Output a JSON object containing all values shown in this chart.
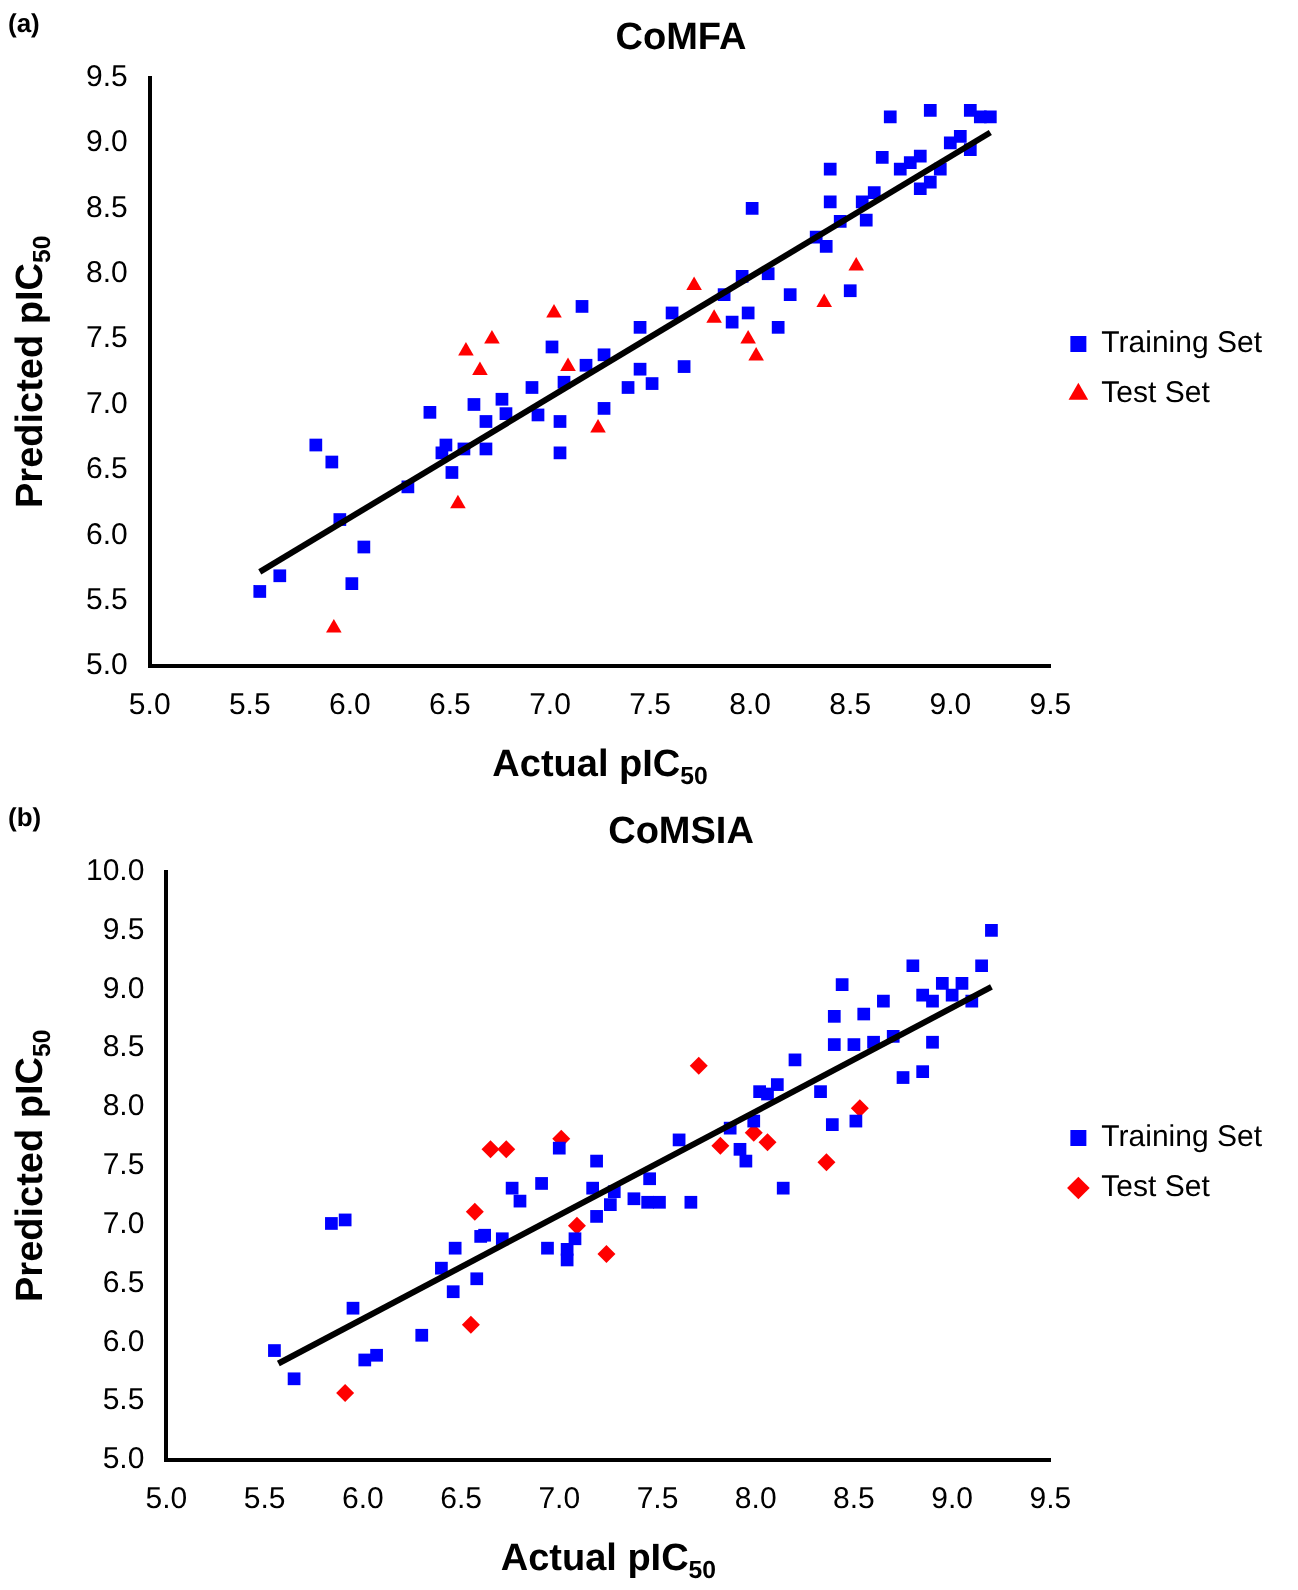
{
  "chart_data": [
    {
      "type": "scatter",
      "title": "CoMFA",
      "xlabel": "Actual pIC$_{50}$",
      "ylabel": "Predicted pIC$_{50}$",
      "annotations": [
        "(a)"
      ],
      "legend": "right",
      "grid": false,
      "xlim": [
        5,
        9.5
      ],
      "xticks": [
        {
          "value": 5,
          "label": "5.0"
        },
        {
          "value": 5.5,
          "label": "5.5"
        },
        {
          "value": 6,
          "label": "6.0"
        },
        {
          "value": 6.5,
          "label": "6.5"
        },
        {
          "value": 7,
          "label": "7.0"
        },
        {
          "value": 7.5,
          "label": "7.5"
        },
        {
          "value": 8,
          "label": "8.0"
        },
        {
          "value": 8.5,
          "label": "8.5"
        },
        {
          "value": 9,
          "label": "9.0"
        },
        {
          "value": 9.5,
          "label": "9.5"
        }
      ],
      "ylim": [
        5,
        9.5
      ],
      "yticks": [
        {
          "value": 5,
          "label": "5.0"
        },
        {
          "value": 5.5,
          "label": "5.5"
        },
        {
          "value": 6,
          "label": "6.0"
        },
        {
          "value": 6.5,
          "label": "6.5"
        },
        {
          "value": 7,
          "label": "7.0"
        },
        {
          "value": 7.5,
          "label": "7.5"
        },
        {
          "value": 8,
          "label": "8.0"
        },
        {
          "value": 8.5,
          "label": "8.5"
        },
        {
          "value": 9,
          "label": "9.0"
        },
        {
          "value": 9.5,
          "label": "9.5"
        }
      ],
      "series": [
        {
          "name": "Training Set",
          "color": "#0000ff",
          "marker": "square",
          "x": [
            5.55,
            5.65,
            5.83,
            5.91,
            5.95,
            6.07,
            6.01,
            6.29,
            6.4,
            6.46,
            6.48,
            6.51,
            6.57,
            6.62,
            6.68,
            6.68,
            6.76,
            6.78,
            6.91,
            6.94,
            7.01,
            7.05,
            7.05,
            7.07,
            7.16,
            7.18,
            7.27,
            7.27,
            7.39,
            7.45,
            7.45,
            7.51,
            7.61,
            7.67,
            7.87,
            7.91,
            7.96,
            7.99,
            8.01,
            8.09,
            8.14,
            8.2,
            8.4,
            8.4,
            8.38,
            8.33,
            8.45,
            8.5,
            8.58,
            8.56,
            8.62,
            8.66,
            8.7,
            8.75,
            8.8,
            8.85,
            8.9,
            8.9,
            8.95,
            9.0,
            9.05,
            9.1,
            9.15,
            9.2,
            9.1,
            8.85
          ],
          "values": [
            5.57,
            5.69,
            6.69,
            6.56,
            6.12,
            5.91,
            5.63,
            6.37,
            6.94,
            6.63,
            6.69,
            6.48,
            6.66,
            7.0,
            6.87,
            6.66,
            7.04,
            6.93,
            7.13,
            6.92,
            7.44,
            6.87,
            6.63,
            7.17,
            7.75,
            7.3,
            7.38,
            6.97,
            7.13,
            7.27,
            7.59,
            7.16,
            7.7,
            7.29,
            7.84,
            7.63,
            7.98,
            7.7,
            8.5,
            8.0,
            7.59,
            7.84,
            8.8,
            8.55,
            8.21,
            8.28,
            8.4,
            7.87,
            8.41,
            8.55,
            8.62,
            8.89,
            9.2,
            8.8,
            8.85,
            8.9,
            8.7,
            9.25,
            8.8,
            9.0,
            9.05,
            9.25,
            9.2,
            9.2,
            8.95,
            8.65
          ]
        },
        {
          "name": "Test Set",
          "color": "#ff0000",
          "marker": "triangle",
          "x": [
            5.92,
            6.54,
            6.58,
            6.65,
            6.71,
            7.02,
            7.09,
            7.24,
            7.72,
            7.82,
            7.99,
            8.03,
            8.37,
            8.53
          ],
          "values": [
            5.29,
            6.24,
            7.41,
            7.26,
            7.5,
            7.7,
            7.29,
            6.82,
            7.91,
            7.66,
            7.5,
            7.37,
            7.78,
            8.06
          ]
        },
        {
          "type": "line",
          "color": "#000000",
          "marker": "none",
          "x": [
            5.55,
            9.2
          ],
          "values": [
            5.72,
            9.08
          ]
        }
      ]
    },
    {
      "type": "scatter",
      "title": "CoMSIA",
      "xlabel": "Actual pIC$_{50}$",
      "ylabel": "Predicted pIC$_{50}$",
      "annotations": [
        "(b)"
      ],
      "legend": "right",
      "grid": false,
      "xlim": [
        5,
        9.5
      ],
      "xticks": [
        {
          "value": 5,
          "label": "5.0"
        },
        {
          "value": 5.5,
          "label": "5.5"
        },
        {
          "value": 6,
          "label": "6.0"
        },
        {
          "value": 6.5,
          "label": "6.5"
        },
        {
          "value": 7,
          "label": "7.0"
        },
        {
          "value": 7.5,
          "label": "7.5"
        },
        {
          "value": 8,
          "label": "8.0"
        },
        {
          "value": 8.5,
          "label": "8.5"
        },
        {
          "value": 9,
          "label": "9.0"
        },
        {
          "value": 9.5,
          "label": "9.5"
        }
      ],
      "ylim": [
        5,
        10
      ],
      "yticks": [
        {
          "value": 5,
          "label": "5.0"
        },
        {
          "value": 5.5,
          "label": "5.5"
        },
        {
          "value": 6,
          "label": "6.0"
        },
        {
          "value": 6.5,
          "label": "6.5"
        },
        {
          "value": 7,
          "label": "7.0"
        },
        {
          "value": 7.5,
          "label": "7.5"
        },
        {
          "value": 8,
          "label": "8.0"
        },
        {
          "value": 8.5,
          "label": "8.5"
        },
        {
          "value": 9,
          "label": "9.0"
        },
        {
          "value": 9.5,
          "label": "9.5"
        },
        {
          "value": 10,
          "label": "10.0"
        }
      ],
      "series": [
        {
          "name": "Training Set",
          "color": "#0000ff",
          "marker": "square",
          "x": [
            5.55,
            5.65,
            5.84,
            5.91,
            5.95,
            6.01,
            6.07,
            6.3,
            6.4,
            6.46,
            6.47,
            6.58,
            6.6,
            6.62,
            6.71,
            6.76,
            6.8,
            6.91,
            6.94,
            7.0,
            7.04,
            7.04,
            7.08,
            7.19,
            7.17,
            7.19,
            7.26,
            7.28,
            7.38,
            7.46,
            7.45,
            7.51,
            7.61,
            7.67,
            7.87,
            7.92,
            7.95,
            8.02,
            8.06,
            8.11,
            7.99,
            8.14,
            8.2,
            8.33,
            8.39,
            8.4,
            8.4,
            8.44,
            8.5,
            8.51,
            8.55,
            8.6,
            8.65,
            8.7,
            8.75,
            8.8,
            8.85,
            8.85,
            8.9,
            8.9,
            8.95,
            9.0,
            9.05,
            9.1,
            9.15,
            9.2
          ],
          "values": [
            5.93,
            5.69,
            7.01,
            7.04,
            6.29,
            5.85,
            5.89,
            6.06,
            6.63,
            6.43,
            6.8,
            6.54,
            6.9,
            6.91,
            6.88,
            7.31,
            7.2,
            7.35,
            6.8,
            7.65,
            6.79,
            6.7,
            6.88,
            7.54,
            7.31,
            7.07,
            7.17,
            7.28,
            7.22,
            7.39,
            7.19,
            7.19,
            7.72,
            7.19,
            7.82,
            7.64,
            7.54,
            8.13,
            8.11,
            8.19,
            7.88,
            7.31,
            8.4,
            8.13,
            7.85,
            8.53,
            8.77,
            9.04,
            8.53,
            7.88,
            8.79,
            8.55,
            8.9,
            8.6,
            8.25,
            9.2,
            8.95,
            8.3,
            8.9,
            8.55,
            9.05,
            8.95,
            9.05,
            8.9,
            9.2,
            9.5
          ]
        },
        {
          "name": "Test Set",
          "color": "#ff0000",
          "marker": "diamond",
          "x": [
            5.91,
            6.55,
            6.57,
            6.65,
            6.73,
            7.01,
            7.09,
            7.24,
            7.71,
            7.82,
            7.99,
            8.06,
            8.36,
            8.53
          ],
          "values": [
            5.57,
            6.15,
            7.11,
            7.64,
            7.64,
            7.73,
            6.99,
            6.75,
            8.35,
            7.67,
            7.78,
            7.7,
            7.53,
            7.99
          ]
        },
        {
          "type": "line",
          "color": "#000000",
          "marker": "none",
          "x": [
            5.57,
            9.2
          ],
          "values": [
            5.82,
            9.02
          ]
        }
      ]
    }
  ]
}
